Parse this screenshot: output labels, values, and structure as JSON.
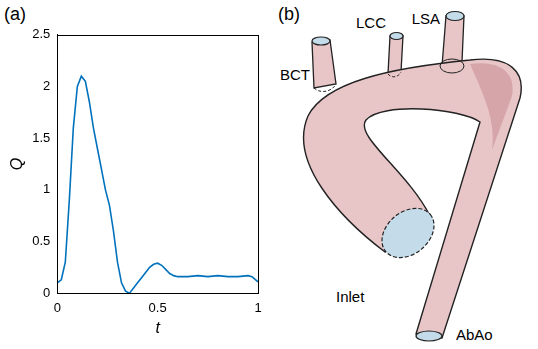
{
  "chart_data": {
    "type": "line",
    "x_label": "t",
    "y_label": "Q",
    "x": [
      0,
      0.02,
      0.04,
      0.06,
      0.08,
      0.1,
      0.12,
      0.14,
      0.16,
      0.18,
      0.2,
      0.22,
      0.24,
      0.26,
      0.28,
      0.3,
      0.32,
      0.34,
      0.36,
      0.38,
      0.4,
      0.42,
      0.44,
      0.46,
      0.48,
      0.5,
      0.52,
      0.54,
      0.56,
      0.58,
      0.6,
      0.65,
      0.7,
      0.75,
      0.8,
      0.85,
      0.9,
      0.95,
      0.97,
      1
    ],
    "values": [
      0.1,
      0.13,
      0.3,
      0.9,
      1.6,
      2.0,
      2.1,
      2.05,
      1.85,
      1.6,
      1.4,
      1.2,
      1.0,
      0.85,
      0.6,
      0.3,
      0.1,
      0.02,
      0.0,
      0.05,
      0.1,
      0.15,
      0.2,
      0.25,
      0.28,
      0.29,
      0.27,
      0.23,
      0.19,
      0.17,
      0.16,
      0.16,
      0.17,
      0.16,
      0.17,
      0.16,
      0.16,
      0.17,
      0.16,
      0.11
    ],
    "color": "#0072bd",
    "xlim": [
      0,
      1
    ],
    "xticks": [
      0,
      0.5,
      1
    ],
    "ylim": [
      0,
      2.5
    ],
    "yticks": [
      0,
      0.5,
      1,
      1.5,
      2,
      2.5
    ],
    "grid": false
  },
  "panel_labels": [
    "(a)",
    "(b)"
  ],
  "diagram": {
    "labels": [
      "BCT",
      "LCC",
      "LSA",
      "Inlet",
      "AbAo"
    ]
  }
}
